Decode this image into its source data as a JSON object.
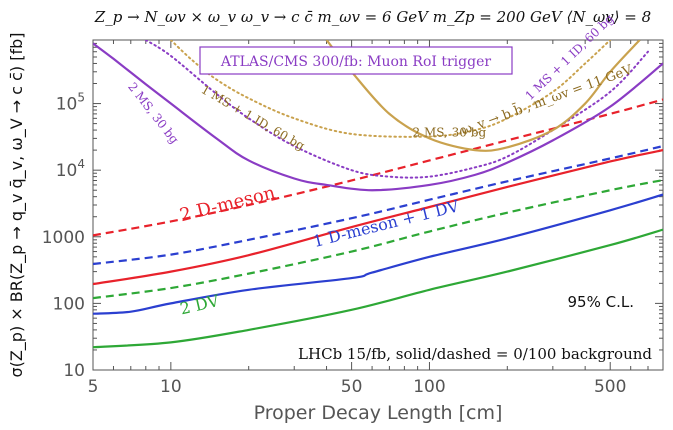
{
  "chart_data": {
    "type": "line",
    "title": "Z_p → N_ωv × ω_v   ω_v → c c̄   m_ωv = 6 GeV   m_Zp = 200 GeV  ⟨N_ωv⟩ = 8",
    "xlabel": "Proper Decay Length [cm]",
    "ylabel": "σ(Z_p) × BR(Z_p → q_v q̄_v, ω_V → c c̄)  [fb]",
    "x_scale": "log",
    "y_scale": "log",
    "xlim": [
      5,
      800
    ],
    "ylim": [
      10,
      900000
    ],
    "x_ticks": [
      {
        "v": 5,
        "label": "5"
      },
      {
        "v": 10,
        "label": "10"
      },
      {
        "v": 50,
        "label": "50"
      },
      {
        "v": 100,
        "label": "100"
      },
      {
        "v": 500,
        "label": "500"
      }
    ],
    "y_ticks": [
      {
        "v": 10,
        "label": "10"
      },
      {
        "v": 100,
        "label": "100"
      },
      {
        "v": 1000,
        "label": "1000"
      },
      {
        "v": 10000,
        "label": "10^4"
      },
      {
        "v": 100000,
        "label": "10^5"
      }
    ],
    "legend_box": "ATLAS/CMS  300/fb: Muon RoI trigger",
    "cl_label": "95% C.L.",
    "bottom_note": "LHCb 15/fb,  solid/dashed = 0/100  background",
    "series": [
      {
        "color": "#e8222b",
        "dash": "solid",
        "x": [
          5,
          10,
          20,
          50,
          100,
          200,
          500,
          800
        ],
        "y": [
          195,
          300,
          530,
          1400,
          2800,
          5600,
          13500,
          20000
        ]
      },
      {
        "color": "#e8222b",
        "dash": "dashed",
        "x": [
          5,
          10,
          20,
          50,
          100,
          200,
          500,
          800
        ],
        "y": [
          1050,
          1700,
          3000,
          7000,
          14000,
          28000,
          70000,
          115000
        ]
      },
      {
        "color": "#2b3fd0",
        "dash": "solid",
        "x": [
          5,
          7,
          10,
          20,
          50,
          60,
          100,
          200,
          500,
          800
        ],
        "y": [
          70,
          75,
          100,
          160,
          240,
          290,
          500,
          950,
          2500,
          4300
        ]
      },
      {
        "color": "#2b3fd0",
        "dash": "dashed",
        "x": [
          5,
          10,
          20,
          50,
          100,
          200,
          500,
          800
        ],
        "y": [
          390,
          540,
          900,
          1900,
          3600,
          6800,
          15000,
          23000
        ]
      },
      {
        "color": "#2ea836",
        "dash": "solid",
        "x": [
          5,
          10,
          20,
          50,
          100,
          200,
          500,
          800
        ],
        "y": [
          22,
          26,
          40,
          80,
          160,
          300,
          750,
          1280
        ]
      },
      {
        "color": "#2ea836",
        "dash": "dashed",
        "x": [
          5,
          10,
          20,
          50,
          100,
          200,
          500,
          800
        ],
        "y": [
          120,
          170,
          280,
          600,
          1200,
          2300,
          5000,
          7100
        ]
      },
      {
        "color": "#8a3cc4",
        "dash": "solid",
        "x": [
          5,
          6,
          8,
          10,
          15,
          20,
          30,
          40,
          60,
          100,
          150,
          200,
          300,
          500,
          800
        ],
        "y": [
          800000,
          470000,
          195000,
          100000,
          30000,
          14000,
          7500,
          6000,
          5000,
          6000,
          8500,
          13000,
          28000,
          90000,
          400000
        ]
      },
      {
        "color": "#8a3cc4",
        "dash": "dotted",
        "x": [
          8,
          10,
          15,
          20,
          30,
          50,
          70,
          100,
          150,
          200,
          300,
          500,
          700
        ],
        "y": [
          900000,
          520000,
          140000,
          60000,
          23000,
          10000,
          8000,
          8000,
          11000,
          16000,
          40000,
          150000,
          600000
        ]
      },
      {
        "color": "#c9a24e",
        "dash": "dotted",
        "x": [
          10,
          12,
          15,
          20,
          30,
          50,
          100,
          150,
          200,
          300,
          400,
          500
        ],
        "y": [
          900000,
          460000,
          230000,
          120000,
          60000,
          35000,
          32000,
          40000,
          60000,
          150000,
          400000,
          900000
        ]
      },
      {
        "color": "#c9a24e",
        "dash": "solid",
        "x": [
          40,
          50,
          70,
          100,
          150,
          200,
          300,
          400,
          500,
          650
        ],
        "y": [
          900000,
          300000,
          70000,
          30000,
          20000,
          22000,
          40000,
          100000,
          300000,
          900000
        ]
      }
    ],
    "annotations": [
      {
        "text": "2 D-meson",
        "color": "#e8222b",
        "x": 11,
        "y": 1700,
        "angle": -14,
        "size": 18
      },
      {
        "text": "1 D-meson + 1 DV",
        "color": "#2b3fd0",
        "x": 36,
        "y": 700,
        "angle": -14,
        "size": 16
      },
      {
        "text": "2 DV",
        "color": "#2ea836",
        "x": 11,
        "y": 68,
        "angle": -13,
        "size": 16
      },
      {
        "text": "2 MS, 30 bg",
        "color": "#8a3cc4",
        "x": 6.8,
        "y": 180000,
        "angle": 52,
        "size": 12
      },
      {
        "text": "1 MS + 1 ID, 60 bg",
        "color": "#8b6a20",
        "x": 13,
        "y": 150000,
        "angle": 30,
        "size": 12
      },
      {
        "text": "2 MS, 30 bg",
        "color": "#8b6a20",
        "x": 86,
        "y": 32000,
        "angle": 0,
        "size": 12
      },
      {
        "text": "1 MS + 1 ID, 60 bg",
        "color": "#8a3cc4",
        "x": 245,
        "y": 110000,
        "angle": -44,
        "size": 12
      },
      {
        "text": "ω_v → b b̄ ,  m_ωv = 11 GeV",
        "color": "#8b6a20",
        "x": 135,
        "y": 34000,
        "angle": -20,
        "size": 13
      }
    ]
  }
}
